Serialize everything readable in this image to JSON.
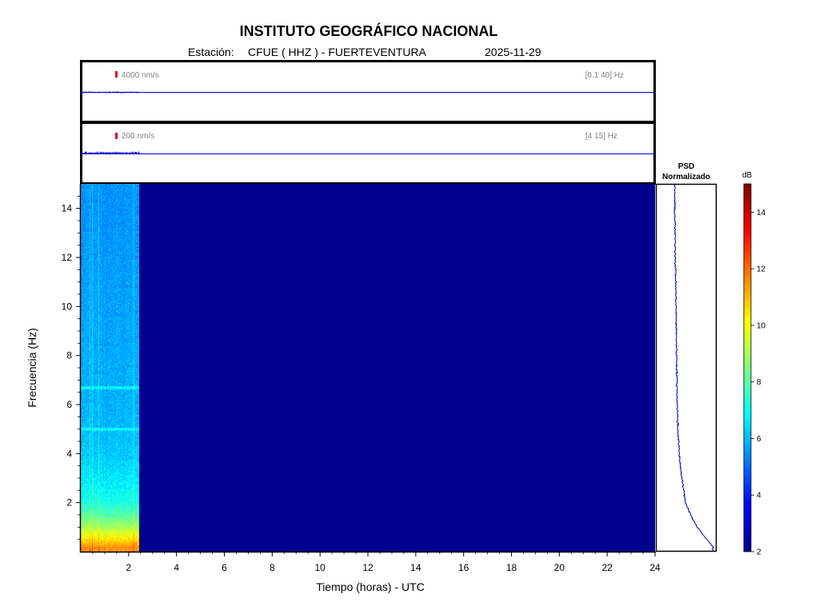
{
  "header": {
    "title": "INSTITUTO GEOGRÁFICO NACIONAL",
    "station_prefix": "Estación:",
    "station": "CFUE ( HHZ ) - FUERTEVENTURA",
    "date": "2025-11-29"
  },
  "trace1": {
    "scale_label": "4000 nm/s",
    "filter_label": "[0.1 40]  Hz",
    "line_color": "#0000cc",
    "scale_color": "#e00000"
  },
  "trace2": {
    "scale_label": "200 nm/s",
    "filter_label": "[4 15]  Hz",
    "line_color": "#0000cc",
    "scale_color": "#e00000"
  },
  "psd": {
    "title_line1": "PSD",
    "title_line2": "Normalizado",
    "line_color": "#0000aa"
  },
  "colorbar": {
    "unit": "dB",
    "ticks": [
      "2",
      "4",
      "6",
      "8",
      "10",
      "12",
      "14"
    ],
    "range": [
      2,
      15
    ],
    "colormap": "jet"
  },
  "chart_data": {
    "type": "heatmap",
    "xlabel": "Tiempo (horas) - UTC",
    "ylabel": "Frecuencia  (Hz)",
    "xlim": [
      0,
      24
    ],
    "ylim": [
      0,
      15
    ],
    "xticks": [
      "2",
      "4",
      "6",
      "8",
      "10",
      "12",
      "14",
      "16",
      "18",
      "20",
      "22",
      "24"
    ],
    "yticks": [
      "2",
      "4",
      "6",
      "8",
      "10",
      "12",
      "14"
    ],
    "data_end_hour": 2.45,
    "background_value_db": 2.5,
    "background_color": "#00008f",
    "spectral_profile": {
      "frequency_hz": [
        0.2,
        0.5,
        1.0,
        1.5,
        2.0,
        3.0,
        4.0,
        5.0,
        6.0,
        8.0,
        10.0,
        12.0,
        14.0,
        15.0
      ],
      "level_db": [
        11.5,
        10.5,
        9.0,
        8.0,
        7.2,
        6.6,
        6.2,
        6.0,
        5.9,
        5.8,
        5.7,
        5.6,
        5.5,
        5.5
      ]
    }
  }
}
